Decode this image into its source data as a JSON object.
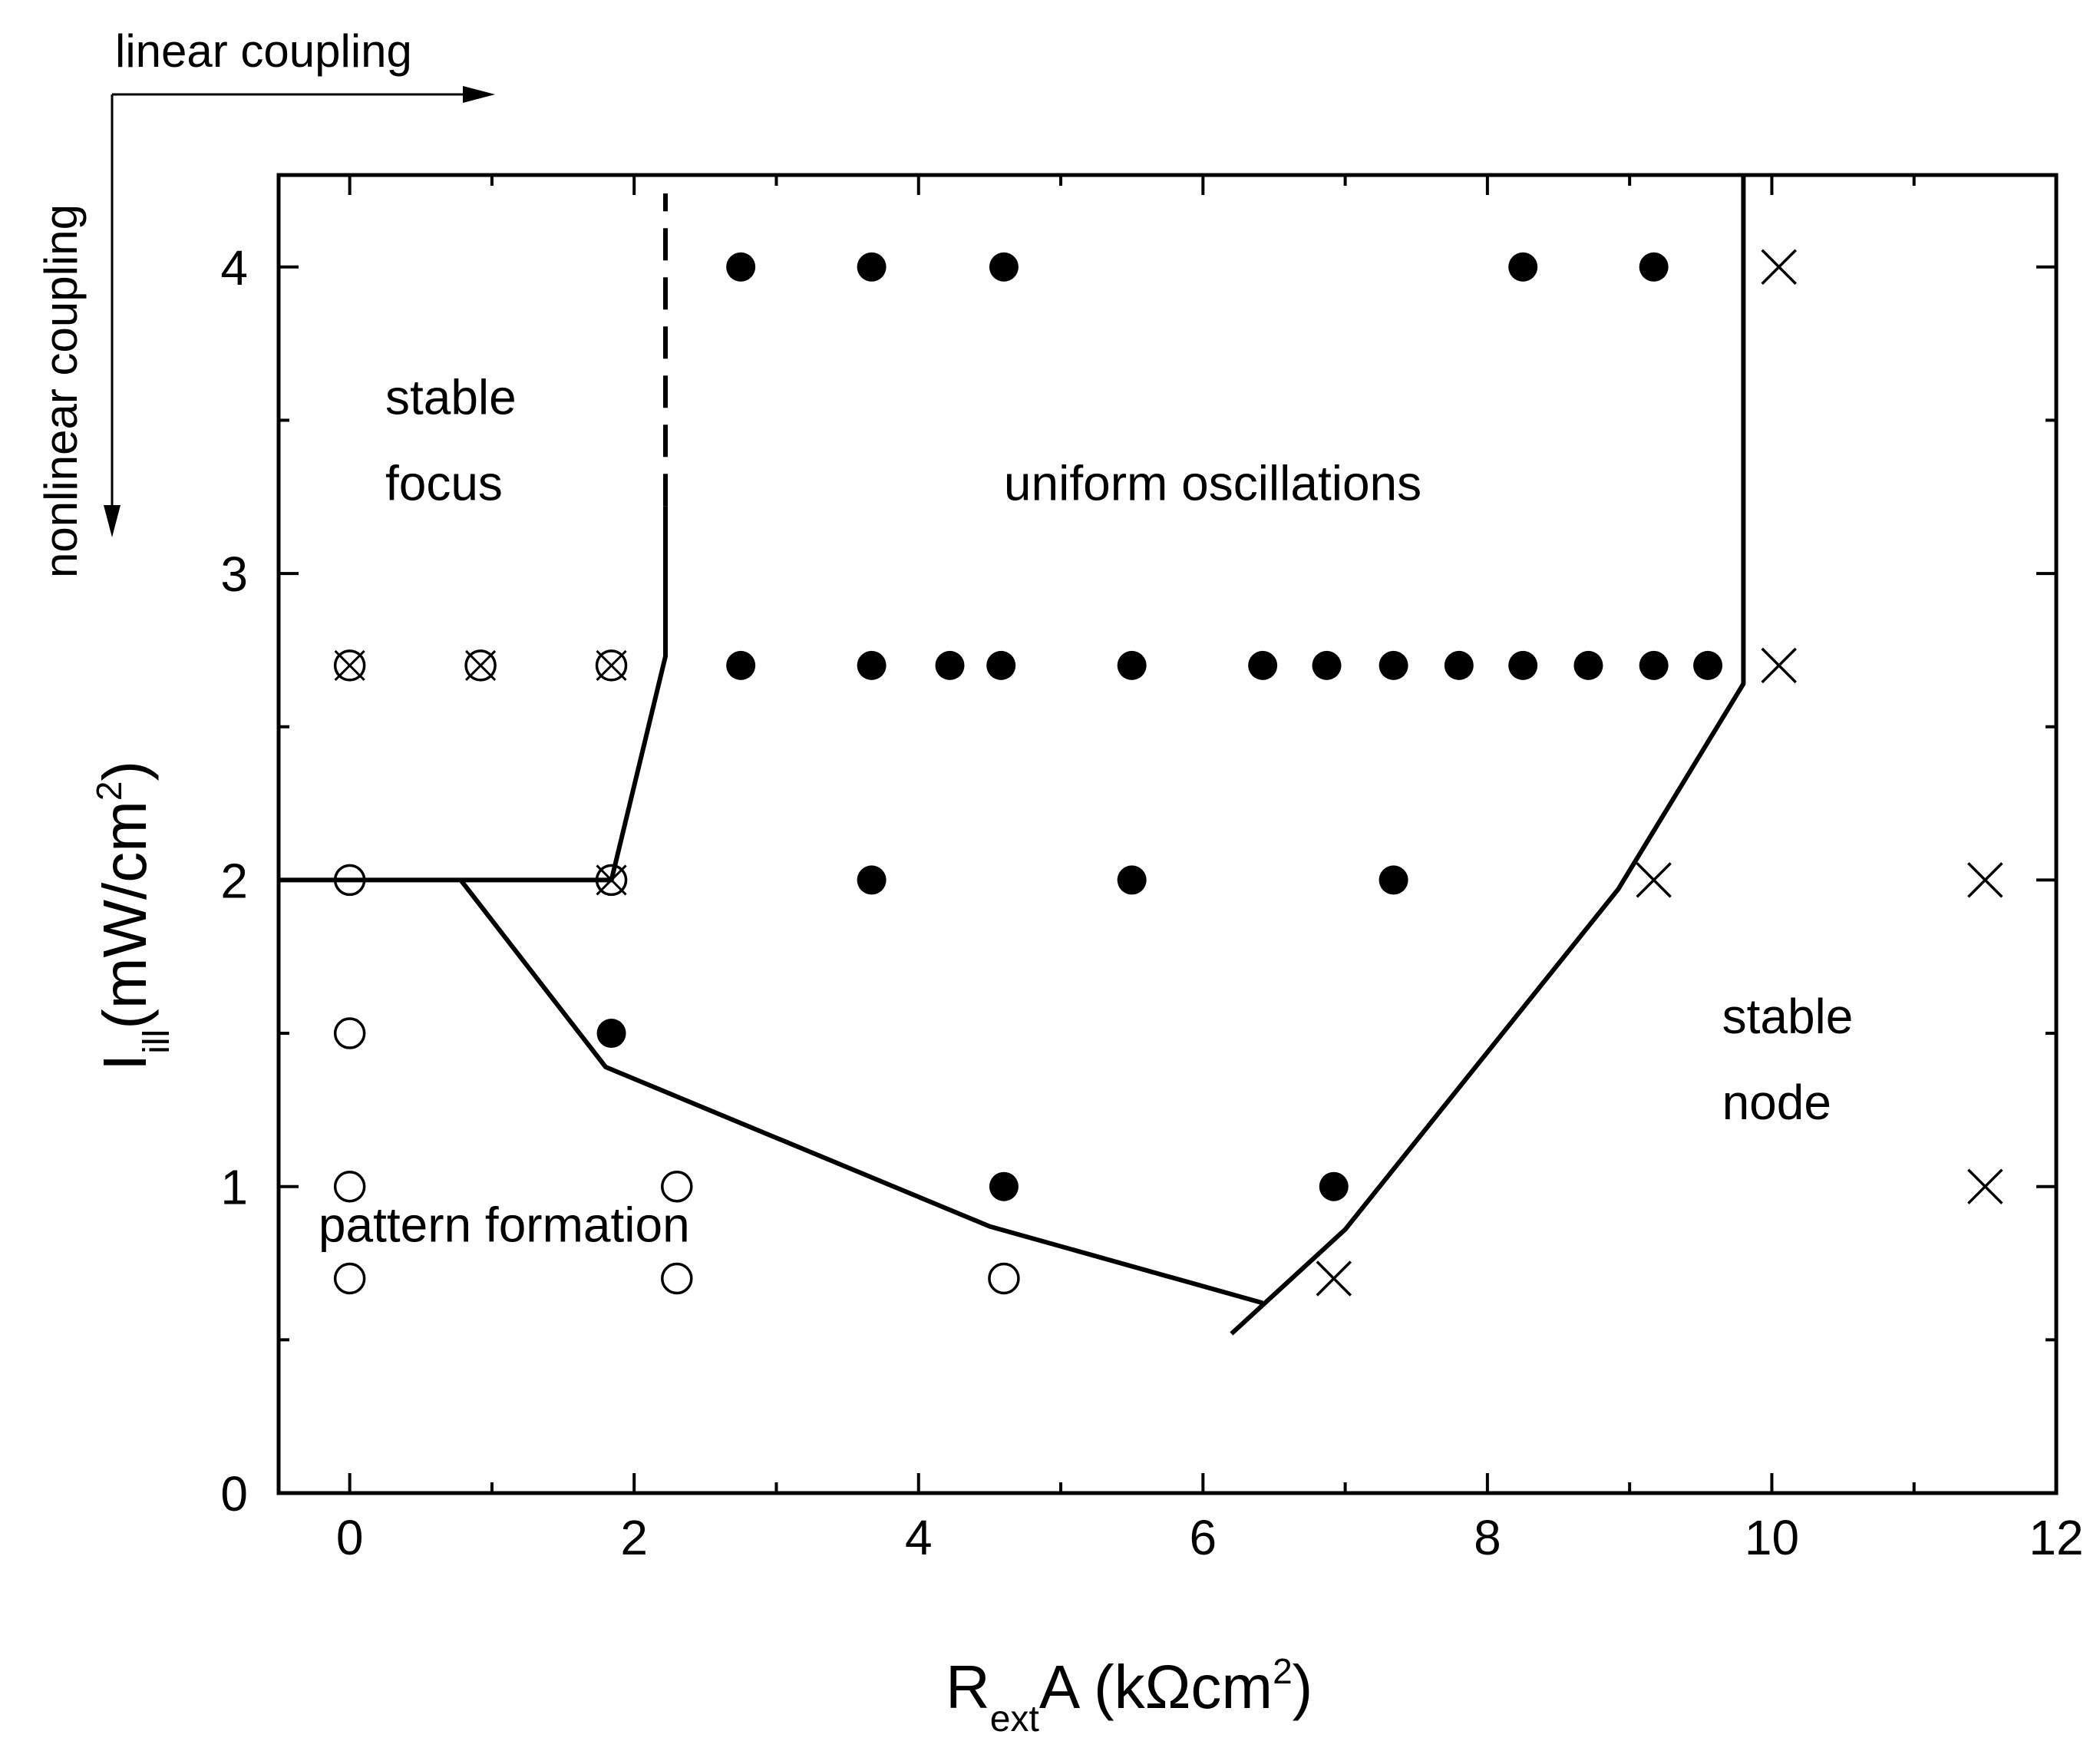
{
  "chart_data": {
    "type": "scatter",
    "x_axis": {
      "label_main": "R",
      "label_sub": "ext",
      "label_rest": "A (kΩcm",
      "label_sup": "2",
      "label_end": ")",
      "range": [
        -0.5,
        12
      ],
      "ticks": [
        0,
        2,
        4,
        6,
        8,
        10,
        12
      ],
      "minor_ticks": [
        1,
        3,
        5,
        7,
        9,
        11
      ],
      "tick_labels": [
        "0",
        "2",
        "4",
        "6",
        "8",
        "10",
        "12"
      ]
    },
    "y_axis": {
      "label_main": "I",
      "label_sub": "ill",
      "label_rest": "(mW/cm",
      "label_sup": "2",
      "label_end": ")",
      "range": [
        0,
        4.3
      ],
      "ticks": [
        0,
        1,
        2,
        3,
        4
      ],
      "minor_ticks": [
        0.5,
        1.5,
        2.5,
        3.5
      ],
      "tick_labels": [
        "0",
        "1",
        "2",
        "3",
        "4"
      ]
    },
    "corner_labels": {
      "linear": "linear coupling",
      "nonlinear": "nonlinear coupling"
    },
    "region_labels": [
      {
        "key": "focus1",
        "text": "stable",
        "x": 0.25,
        "y": 3.52
      },
      {
        "key": "focus2",
        "text": "focus",
        "x": 0.25,
        "y": 3.24
      },
      {
        "key": "uniform",
        "text": "uniform oscillations",
        "x": 4.6,
        "y": 3.24
      },
      {
        "key": "node1",
        "text": "stable",
        "x": 9.65,
        "y": 1.5
      },
      {
        "key": "node2",
        "text": "node",
        "x": 9.65,
        "y": 1.22
      },
      {
        "key": "pattern",
        "text": "pattern formation",
        "x": -0.22,
        "y": 0.82
      }
    ],
    "series": [
      {
        "marker": "filled-circle",
        "points": [
          [
            2.75,
            4
          ],
          [
            3.67,
            4
          ],
          [
            4.6,
            4
          ],
          [
            8.25,
            4
          ],
          [
            9.17,
            4
          ],
          [
            2.75,
            2.7
          ],
          [
            3.67,
            2.7
          ],
          [
            4.22,
            2.7
          ],
          [
            4.58,
            2.7
          ],
          [
            5.5,
            2.7
          ],
          [
            6.42,
            2.7
          ],
          [
            6.87,
            2.7
          ],
          [
            7.34,
            2.7
          ],
          [
            7.8,
            2.7
          ],
          [
            8.25,
            2.7
          ],
          [
            8.71,
            2.7
          ],
          [
            9.17,
            2.7
          ],
          [
            9.55,
            2.7
          ],
          [
            3.67,
            2
          ],
          [
            5.5,
            2
          ],
          [
            7.34,
            2
          ],
          [
            1.84,
            1.5
          ],
          [
            4.6,
            1
          ],
          [
            6.92,
            1
          ]
        ]
      },
      {
        "marker": "open-circle",
        "points": [
          [
            0,
            2
          ],
          [
            0,
            1.5
          ],
          [
            0,
            1
          ],
          [
            2.3,
            1
          ],
          [
            0,
            0.7
          ],
          [
            2.3,
            0.7
          ],
          [
            4.6,
            0.7
          ]
        ]
      },
      {
        "marker": "circle-cross",
        "points": [
          [
            0,
            2.7
          ],
          [
            0.92,
            2.7
          ],
          [
            1.84,
            2.7
          ],
          [
            1.84,
            2
          ]
        ]
      },
      {
        "marker": "cross",
        "points": [
          [
            10.05,
            4
          ],
          [
            10.05,
            2.7
          ],
          [
            9.17,
            2
          ],
          [
            11.5,
            2
          ],
          [
            11.5,
            1
          ],
          [
            6.92,
            0.7
          ]
        ]
      }
    ],
    "boundaries": [
      {
        "style": "solid",
        "points": [
          [
            -0.5,
            2
          ],
          [
            1.84,
            2
          ],
          [
            2.22,
            2.73
          ],
          [
            2.22,
            3.22
          ]
        ]
      },
      {
        "style": "dashed",
        "points": [
          [
            2.22,
            3.22
          ],
          [
            2.22,
            4.24
          ]
        ]
      },
      {
        "style": "solid",
        "points": [
          [
            0.78,
            2
          ],
          [
            1.8,
            1.39
          ],
          [
            4.5,
            0.87
          ],
          [
            6.42,
            0.62
          ]
        ]
      },
      {
        "style": "solid",
        "points": [
          [
            6.2,
            0.52
          ],
          [
            7.0,
            0.86
          ],
          [
            8.92,
            1.97
          ],
          [
            9.8,
            2.64
          ],
          [
            9.8,
            4.3
          ]
        ]
      }
    ]
  }
}
